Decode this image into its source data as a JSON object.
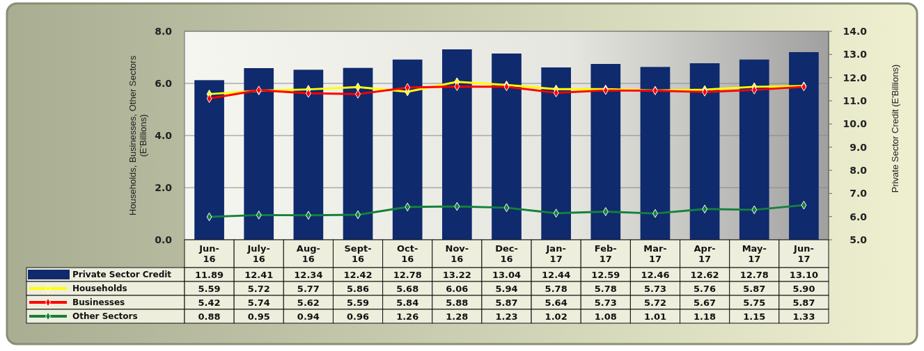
{
  "chart_data": {
    "type": "bar",
    "ylabel": "Households, Businesses, Other Sectors (E'Billions)",
    "y2label": "Private Sector Credit (E'Billions)",
    "categories": [
      "Jun-16",
      "July-16",
      "Aug-16",
      "Sept-16",
      "Oct-16",
      "Nov-16",
      "Dec-16",
      "Jan-17",
      "Feb-17",
      "Mar-17",
      "Apr-17",
      "May-17",
      "Jun-17"
    ],
    "series": [
      {
        "name": "Private Sector Credit",
        "type": "bar",
        "axis": "y2",
        "color": "#102a6e",
        "values": [
          11.89,
          12.41,
          12.34,
          12.42,
          12.78,
          13.22,
          13.04,
          12.44,
          12.59,
          12.46,
          12.62,
          12.78,
          13.1
        ],
        "value_labels": [
          "11.89",
          "12.41",
          "12.34",
          "12.42",
          "12.78",
          "13.22",
          "13.04",
          "12.44",
          "12.59",
          "12.46",
          "12.62",
          "12.78",
          "13.10"
        ]
      },
      {
        "name": "Households",
        "type": "line",
        "color": "#ffff00",
        "values": [
          5.59,
          5.72,
          5.77,
          5.86,
          5.68,
          6.06,
          5.94,
          5.78,
          5.78,
          5.73,
          5.76,
          5.87,
          5.9
        ],
        "value_labels": [
          "5.59",
          "5.72",
          "5.77",
          "5.86",
          "5.68",
          "6.06",
          "5.94",
          "5.78",
          "5.78",
          "5.73",
          "5.76",
          "5.87",
          "5.90"
        ]
      },
      {
        "name": "Businesses",
        "type": "line",
        "color": "#ff0000",
        "values": [
          5.42,
          5.74,
          5.62,
          5.59,
          5.84,
          5.88,
          5.87,
          5.64,
          5.73,
          5.72,
          5.67,
          5.75,
          5.87
        ],
        "value_labels": [
          "5.42",
          "5.74",
          "5.62",
          "5.59",
          "5.84",
          "5.88",
          "5.87",
          "5.64",
          "5.73",
          "5.72",
          "5.67",
          "5.75",
          "5.87"
        ]
      },
      {
        "name": "Other Sectors",
        "type": "line",
        "color": "#13813b",
        "values": [
          0.88,
          0.95,
          0.94,
          0.96,
          1.26,
          1.28,
          1.23,
          1.02,
          1.08,
          1.01,
          1.18,
          1.15,
          1.33
        ],
        "value_labels": [
          "0.88",
          "0.95",
          "0.94",
          "0.96",
          "1.26",
          "1.28",
          "1.23",
          "1.02",
          "1.08",
          "1.01",
          "1.18",
          "1.15",
          "1.33"
        ]
      }
    ],
    "ylim": [
      0,
      8
    ],
    "yticks": [
      {
        "value": 0,
        "label": "0.0"
      },
      {
        "value": 2,
        "label": "2.0"
      },
      {
        "value": 4,
        "label": "4.0"
      },
      {
        "value": 6,
        "label": "6.0"
      },
      {
        "value": 8,
        "label": "8.0"
      }
    ],
    "y2lim": [
      5,
      14
    ],
    "y2ticks": [
      {
        "value": 5,
        "label": "5.0"
      },
      {
        "value": 6,
        "label": "6.0"
      },
      {
        "value": 7,
        "label": "7.0"
      },
      {
        "value": 8,
        "label": "8.0"
      },
      {
        "value": 9,
        "label": "9.0"
      },
      {
        "value": 10,
        "label": "10.0"
      },
      {
        "value": 11,
        "label": "11.0"
      },
      {
        "value": 12,
        "label": "12.0"
      },
      {
        "value": 13,
        "label": "13.0"
      },
      {
        "value": 14,
        "label": "14.0"
      }
    ],
    "grid": "y",
    "legend": "bottom",
    "data_labels": true,
    "marker": "diamond",
    "line_style": "solid"
  }
}
